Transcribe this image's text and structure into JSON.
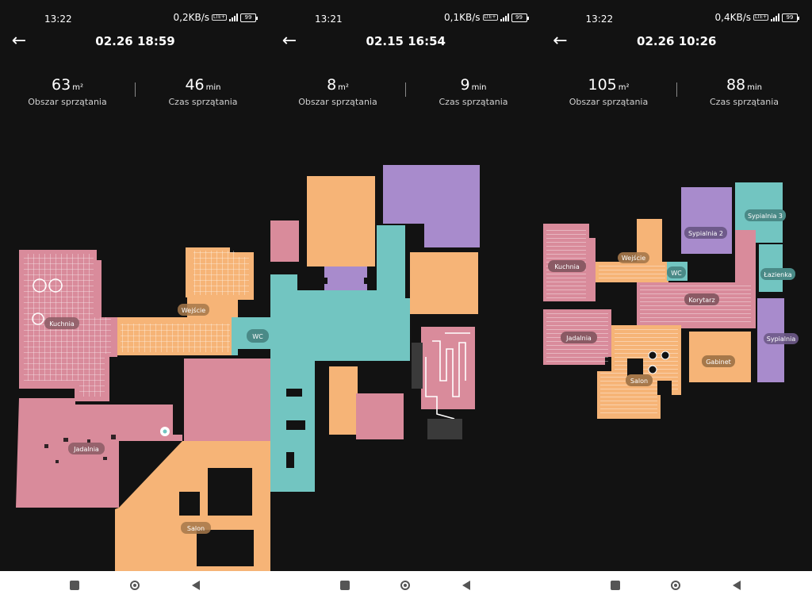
{
  "screens": [
    {
      "status": {
        "time": "13:22",
        "speed": "0,2KB/s",
        "network": "LTE+",
        "battery": "99"
      },
      "title": "02.26 18:59",
      "area": {
        "value": "63",
        "unit": "m²",
        "label": "Obszar sprzątania"
      },
      "duration": {
        "value": "46",
        "unit": "min",
        "label": "Czas sprzątania"
      },
      "rooms": [
        "Kuchnia",
        "Wejście",
        "WC",
        "Jadalnia",
        "Salon"
      ]
    },
    {
      "status": {
        "time": "13:21",
        "speed": "0,1KB/s",
        "network": "LTE+",
        "battery": "99"
      },
      "title": "02.15 16:54",
      "area": {
        "value": "8",
        "unit": "m²",
        "label": "Obszar sprzątania"
      },
      "duration": {
        "value": "9",
        "unit": "min",
        "label": "Czas sprzątania"
      },
      "rooms": []
    },
    {
      "status": {
        "time": "13:22",
        "speed": "0,4KB/s",
        "network": "LTE+",
        "battery": "99"
      },
      "title": "02.26 10:26",
      "area": {
        "value": "105",
        "unit": "m²",
        "label": "Obszar sprzątania"
      },
      "duration": {
        "value": "88",
        "unit": "min",
        "label": "Czas sprzątania"
      },
      "rooms": [
        "Sypialnia 3",
        "Sypialnia 2",
        "Wejście",
        "Kuchnia",
        "WC",
        "Łazienka",
        "Korytarz",
        "Jadalnia",
        "Sypialnia",
        "Gabinet",
        "Salon"
      ]
    }
  ],
  "colors": {
    "pink": "#d98b9b",
    "orange": "#f6b477",
    "teal": "#72c5c1",
    "purple": "#a88bcc",
    "background": "#121212"
  },
  "icons": {
    "back": "arrow-left-icon",
    "nav_recent": "square-icon",
    "nav_home": "circle-icon",
    "nav_back": "triangle-icon"
  }
}
